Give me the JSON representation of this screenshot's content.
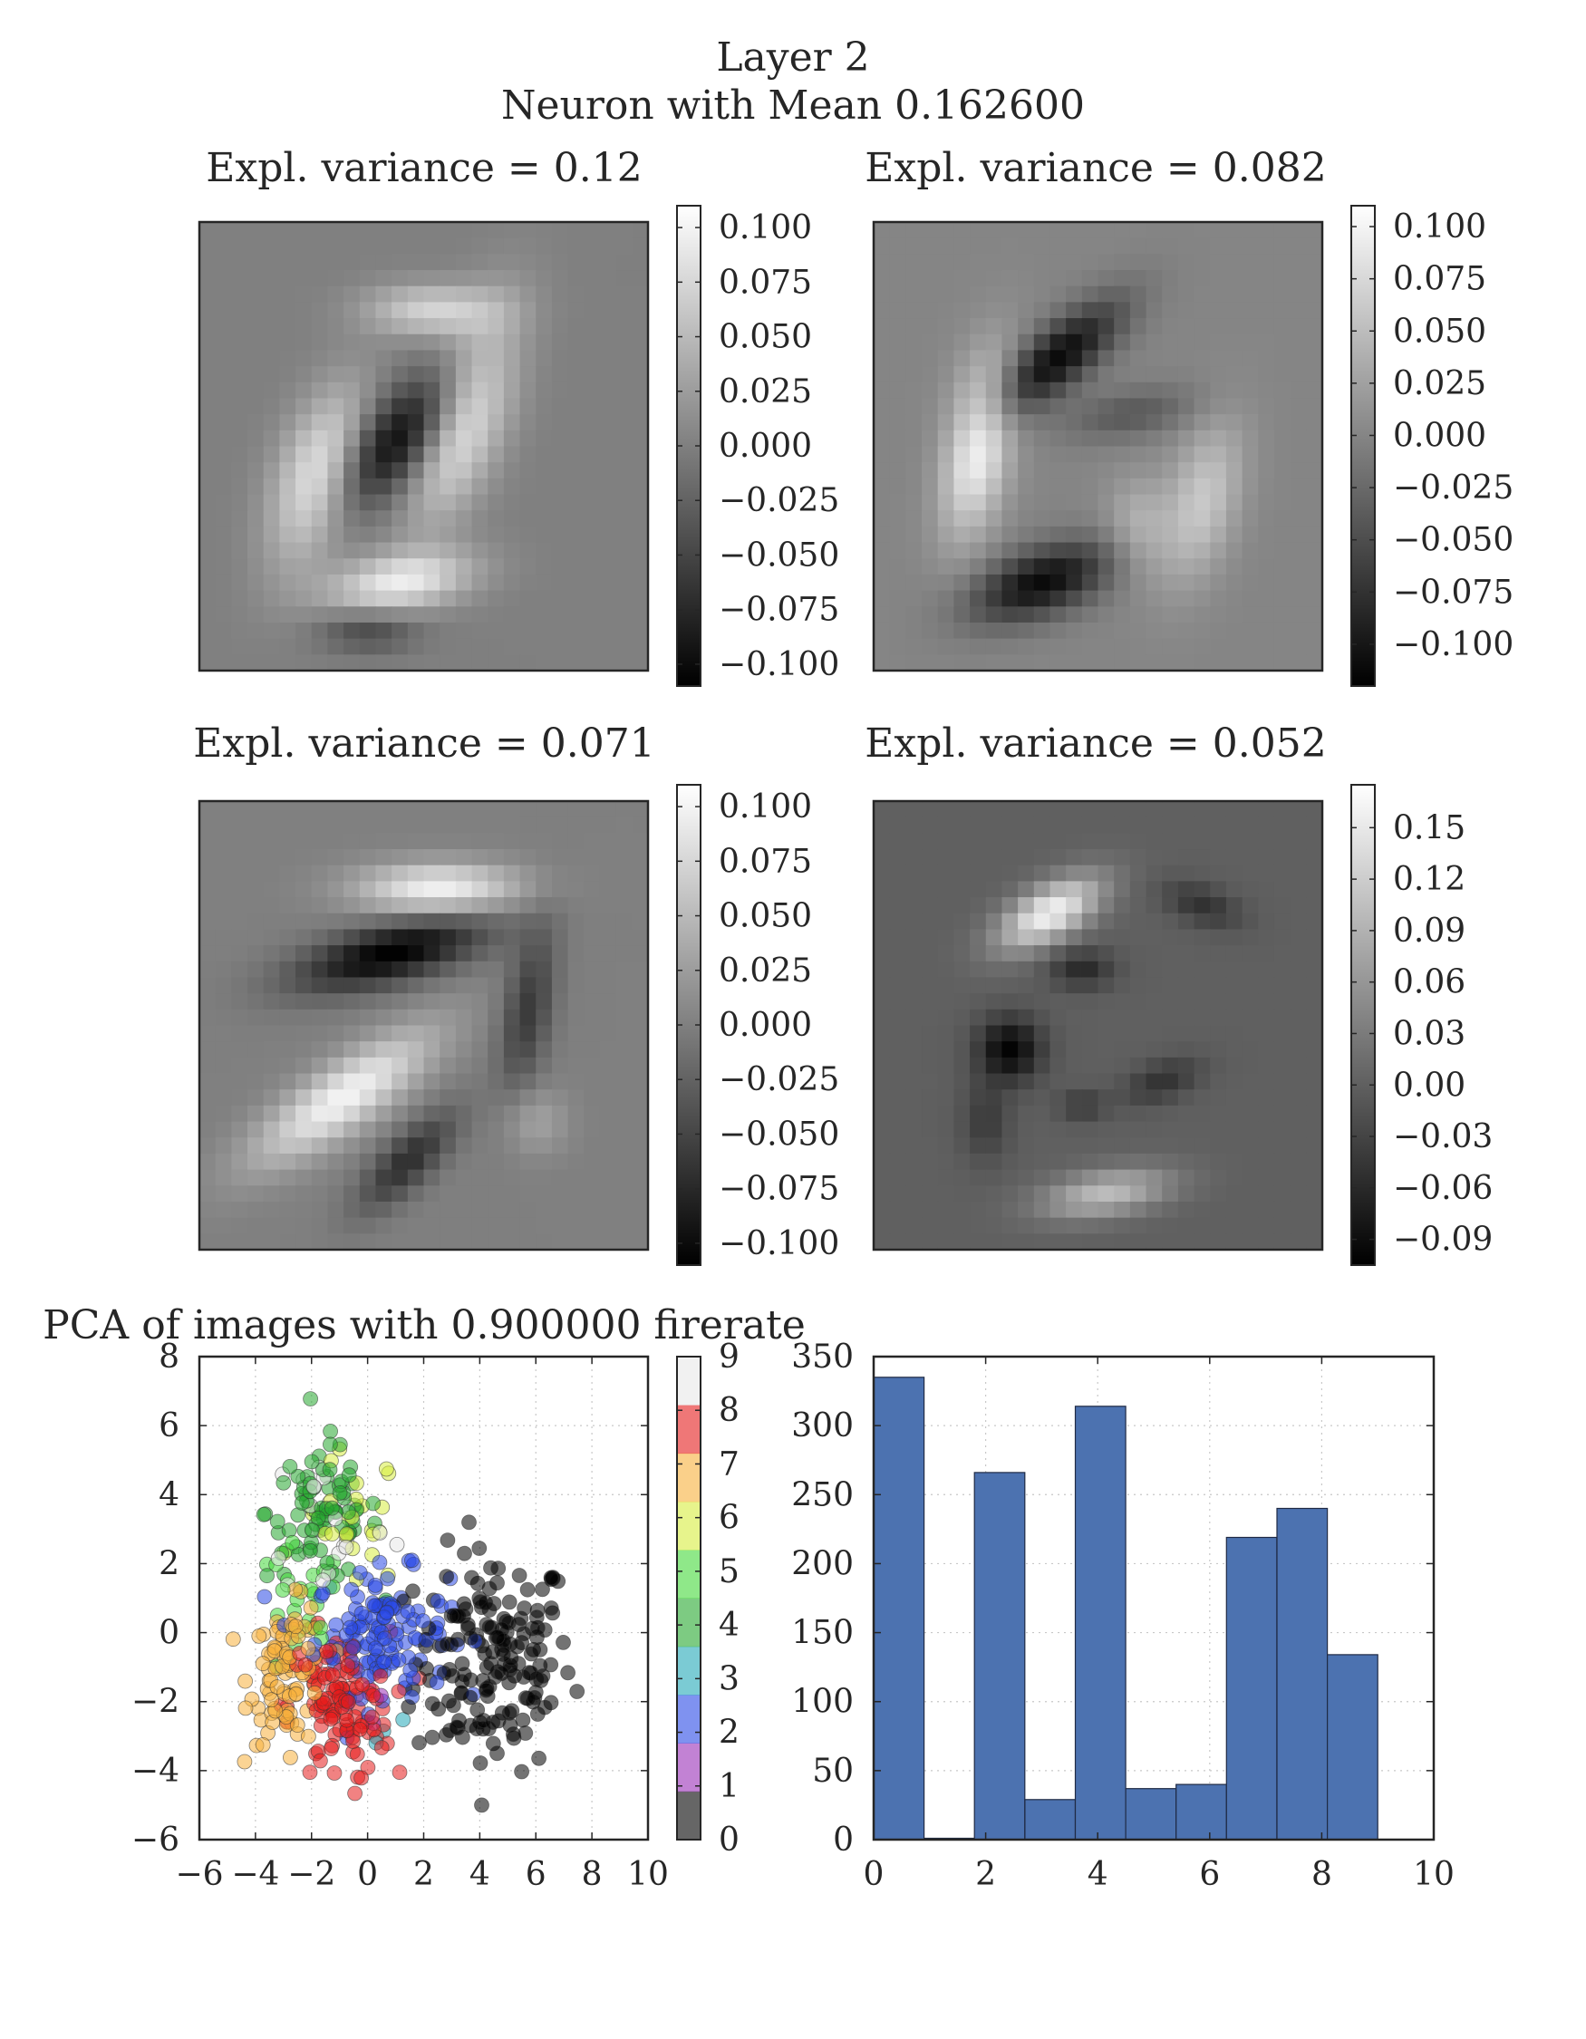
{
  "figure": {
    "title_line1": "Layer 2",
    "title_line2": "Neuron with Mean 0.162600"
  },
  "chart_data": [
    {
      "type": "heatmap",
      "title": "Expl. variance = 0.12",
      "colormap": "gray",
      "colorbar_ticks": [
        "0.100",
        "0.075",
        "0.050",
        "0.025",
        "0.000",
        "−0.025",
        "−0.050",
        "−0.075",
        "−0.100"
      ],
      "colorbar_range": [
        -0.11,
        0.11
      ],
      "background_level": 0.0,
      "strokes": [
        {
          "cx": 7.5,
          "cy": 16.0,
          "rx": 2.5,
          "ry": 5.5,
          "rot": 20,
          "v": 0.1
        },
        {
          "cx": 12.5,
          "cy": 22.5,
          "rx": 4.5,
          "ry": 1.8,
          "rot": -10,
          "v": 0.09
        },
        {
          "cx": 16.5,
          "cy": 12.0,
          "rx": 2.5,
          "ry": 6.5,
          "rot": 20,
          "v": 0.1
        },
        {
          "cx": 14.5,
          "cy": 5.5,
          "rx": 4.0,
          "ry": 1.6,
          "rot": 0,
          "v": 0.07
        },
        {
          "cx": 12.5,
          "cy": 13.5,
          "rx": 2.4,
          "ry": 6.0,
          "rot": 45,
          "v": -0.11
        },
        {
          "cx": 10.5,
          "cy": 25.5,
          "rx": 3.0,
          "ry": 1.3,
          "rot": 0,
          "v": -0.05
        }
      ]
    },
    {
      "type": "heatmap",
      "title": "Expl. variance = 0.082",
      "colormap": "gray",
      "colorbar_ticks": [
        "0.100",
        "0.075",
        "0.050",
        "0.025",
        "0.000",
        "−0.025",
        "−0.050",
        "−0.075",
        "−0.100"
      ],
      "colorbar_range": [
        -0.12,
        0.11
      ],
      "background_level": 0.0,
      "strokes": [
        {
          "cx": 6.5,
          "cy": 14.0,
          "rx": 2.0,
          "ry": 5.5,
          "rot": 10,
          "v": 0.1
        },
        {
          "cx": 20.5,
          "cy": 17.5,
          "rx": 2.2,
          "ry": 5.0,
          "rot": 15,
          "v": 0.06
        },
        {
          "cx": 11.5,
          "cy": 8.5,
          "rx": 5.0,
          "ry": 1.8,
          "rot": -40,
          "v": -0.11
        },
        {
          "cx": 10.5,
          "cy": 22.5,
          "rx": 4.5,
          "ry": 2.0,
          "rot": -20,
          "v": -0.11
        },
        {
          "cx": 16.0,
          "cy": 12.0,
          "rx": 4.0,
          "ry": 1.5,
          "rot": -10,
          "v": -0.04
        },
        {
          "cx": 16.5,
          "cy": 19.0,
          "rx": 2.0,
          "ry": 3.0,
          "rot": 0,
          "v": 0.04
        }
      ]
    },
    {
      "type": "heatmap",
      "title": "Expl. variance = 0.071",
      "colormap": "gray",
      "colorbar_ticks": [
        "0.100",
        "0.075",
        "0.050",
        "0.025",
        "0.000",
        "−0.025",
        "−0.050",
        "−0.075",
        "−0.100"
      ],
      "colorbar_range": [
        -0.11,
        0.11
      ],
      "background_level": 0.0,
      "strokes": [
        {
          "cx": 15.0,
          "cy": 5.5,
          "rx": 5.0,
          "ry": 1.6,
          "rot": 0,
          "v": 0.1
        },
        {
          "cx": 9.0,
          "cy": 18.5,
          "rx": 6.5,
          "ry": 2.0,
          "rot": -35,
          "v": 0.1
        },
        {
          "cx": 12.0,
          "cy": 9.5,
          "rx": 6.0,
          "ry": 1.8,
          "rot": -15,
          "v": -0.11
        },
        {
          "cx": 13.0,
          "cy": 22.5,
          "rx": 4.0,
          "ry": 1.5,
          "rot": -45,
          "v": -0.07
        },
        {
          "cx": 20.5,
          "cy": 13.0,
          "rx": 1.5,
          "ry": 5.0,
          "rot": 10,
          "v": -0.06
        },
        {
          "cx": 21.0,
          "cy": 20.0,
          "rx": 2.0,
          "ry": 2.0,
          "rot": 0,
          "v": 0.03
        }
      ]
    },
    {
      "type": "heatmap",
      "title": "Expl. variance = 0.052",
      "colormap": "gray",
      "colorbar_ticks": [
        "0.15",
        "0.12",
        "0.09",
        "0.06",
        "0.03",
        "0.00",
        "−0.03",
        "−0.06",
        "−0.09"
      ],
      "colorbar_range": [
        -0.105,
        0.175
      ],
      "background_level": 0.0,
      "strokes": [
        {
          "cx": 11.0,
          "cy": 7.0,
          "rx": 3.5,
          "ry": 1.6,
          "rot": -30,
          "v": 0.16
        },
        {
          "cx": 14.5,
          "cy": 24.5,
          "rx": 4.0,
          "ry": 1.4,
          "rot": -10,
          "v": 0.1
        },
        {
          "cx": 8.5,
          "cy": 15.5,
          "rx": 2.0,
          "ry": 2.0,
          "rot": 0,
          "v": -0.1
        },
        {
          "cx": 13.0,
          "cy": 10.5,
          "rx": 2.0,
          "ry": 1.2,
          "rot": 0,
          "v": -0.06
        },
        {
          "cx": 20.5,
          "cy": 6.5,
          "rx": 2.5,
          "ry": 1.2,
          "rot": 20,
          "v": -0.05
        },
        {
          "cx": 18.0,
          "cy": 17.5,
          "rx": 2.5,
          "ry": 1.2,
          "rot": -20,
          "v": -0.05
        },
        {
          "cx": 13.0,
          "cy": 19.0,
          "rx": 1.5,
          "ry": 1.0,
          "rot": 0,
          "v": -0.04
        },
        {
          "cx": 7.0,
          "cy": 20.0,
          "rx": 1.5,
          "ry": 2.5,
          "rot": 0,
          "v": -0.04
        }
      ]
    },
    {
      "type": "scatter",
      "title": "PCA of images with 0.900000 firerate",
      "xlim": [
        -6,
        10
      ],
      "ylim": [
        -6,
        8
      ],
      "x_ticks": [
        "−6",
        "−4",
        "−2",
        "0",
        "2",
        "4",
        "6",
        "8",
        "10"
      ],
      "y_ticks": [
        "−6",
        "−4",
        "−2",
        "0",
        "2",
        "4",
        "6",
        "8"
      ],
      "grid": true,
      "colorbar_ticks": [
        "0",
        "1",
        "2",
        "3",
        "4",
        "5",
        "6",
        "7",
        "8",
        "9"
      ],
      "class_colors": [
        "#000000",
        "#9a2fb8",
        "#2a49e6",
        "#23a8b8",
        "#27a82f",
        "#44d93a",
        "#d7ed3f",
        "#f7b13c",
        "#e51c1c",
        "#e8e8e8"
      ],
      "clusters": [
        {
          "label": 0,
          "cx": 4.5,
          "cy": -0.8,
          "sx": 1.4,
          "sy": 1.6,
          "n": 170
        },
        {
          "label": 2,
          "cx": 0.5,
          "cy": 0.0,
          "sx": 1.2,
          "sy": 0.9,
          "n": 130
        },
        {
          "label": 4,
          "cx": -1.6,
          "cy": 3.5,
          "sx": 1.0,
          "sy": 1.0,
          "n": 80
        },
        {
          "label": 5,
          "cx": -2.5,
          "cy": 0.5,
          "sx": 0.8,
          "sy": 1.0,
          "n": 25
        },
        {
          "label": 6,
          "cx": -0.6,
          "cy": 3.2,
          "sx": 0.9,
          "sy": 1.0,
          "n": 25
        },
        {
          "label": 7,
          "cx": -2.8,
          "cy": -1.2,
          "sx": 0.7,
          "sy": 1.0,
          "n": 90
        },
        {
          "label": 8,
          "cx": -1.0,
          "cy": -2.2,
          "sx": 0.9,
          "sy": 1.1,
          "n": 110
        },
        {
          "label": 9,
          "cx": -1.3,
          "cy": 3.3,
          "sx": 1.1,
          "sy": 1.2,
          "n": 25
        },
        {
          "label": 3,
          "cx": 0.8,
          "cy": -2.8,
          "sx": 0.4,
          "sy": 0.3,
          "n": 3
        },
        {
          "label": 1,
          "cx": 0.3,
          "cy": -1.2,
          "sx": 0.5,
          "sy": 0.5,
          "n": 3
        }
      ]
    },
    {
      "type": "bar",
      "title": "",
      "bin_edges": [
        0,
        0.9,
        1.8,
        2.7,
        3.6,
        4.5,
        5.4,
        6.3,
        7.2,
        8.1,
        9.0
      ],
      "values": [
        335,
        1,
        266,
        29,
        314,
        37,
        40,
        219,
        240,
        134
      ],
      "xlim": [
        0,
        10
      ],
      "ylim": [
        0,
        350
      ],
      "x_ticks": [
        "0",
        "2",
        "4",
        "6",
        "8",
        "10"
      ],
      "y_ticks": [
        "0",
        "50",
        "100",
        "150",
        "200",
        "250",
        "300",
        "350"
      ],
      "grid": true,
      "bar_color": "#4c72b0"
    }
  ]
}
